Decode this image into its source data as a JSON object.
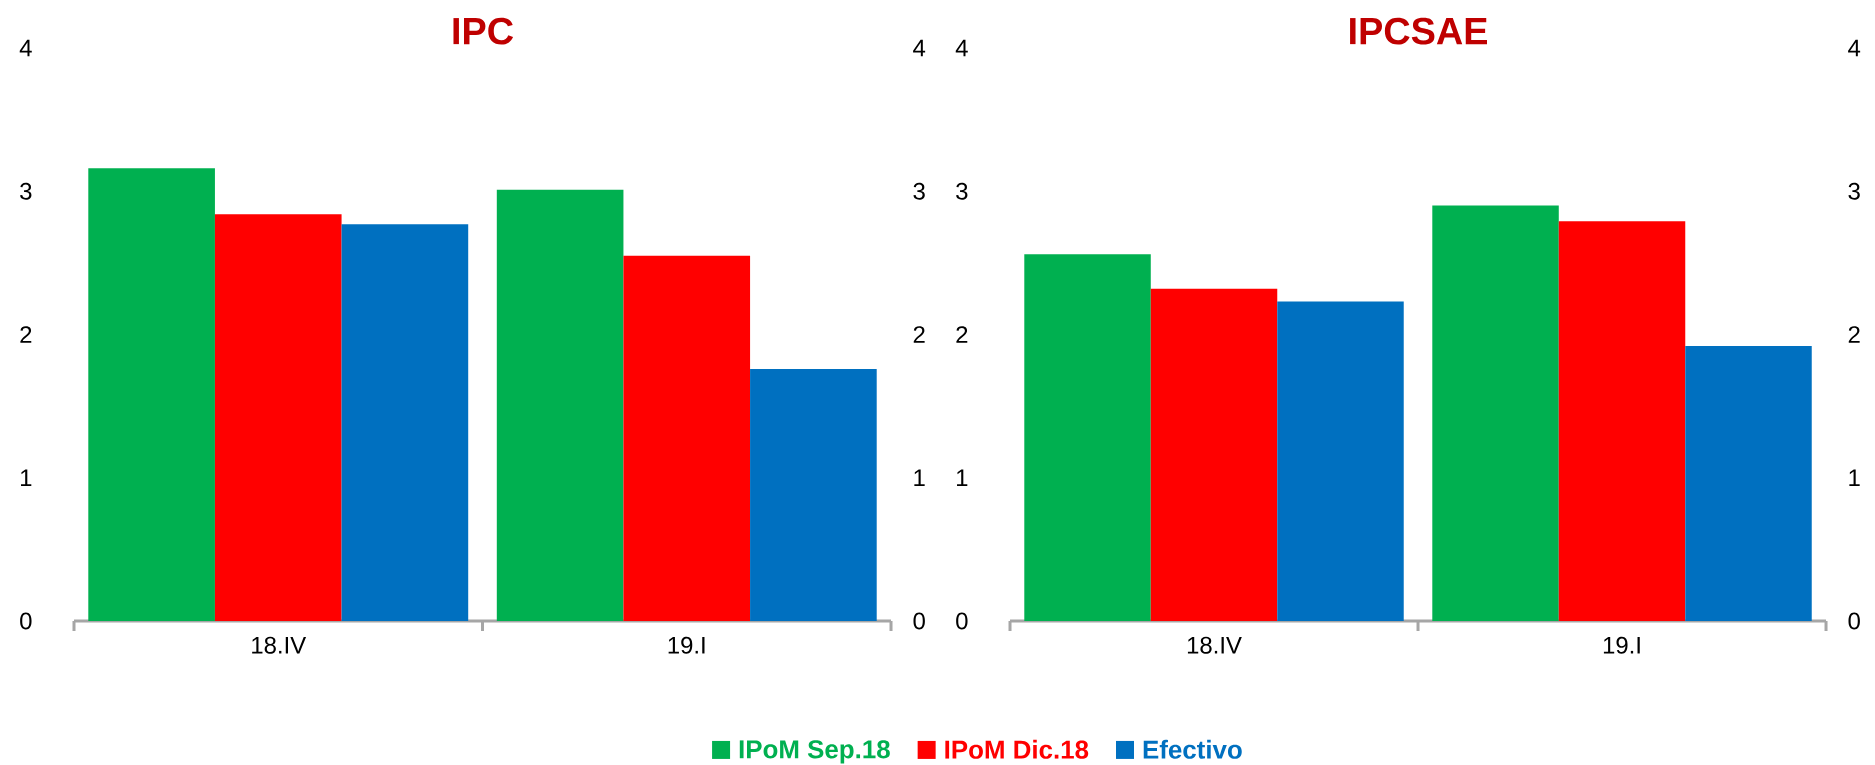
{
  "chart_data": [
    {
      "type": "bar",
      "title": "IPC",
      "categories": [
        "18.IV",
        "19.I"
      ],
      "ylim": [
        0,
        4
      ],
      "yticks": [
        0,
        1,
        2,
        3,
        4
      ],
      "y2lim": [
        0,
        4
      ],
      "y2ticks": [
        0,
        1,
        2,
        3,
        4
      ],
      "legend": "bottom",
      "grid": false,
      "series": [
        {
          "name": "IPoM Sep.18",
          "color": "#00b050",
          "values": [
            3.16,
            3.01
          ]
        },
        {
          "name": "IPoM Dic.18",
          "color": "#ff0000",
          "values": [
            2.84,
            2.55
          ]
        },
        {
          "name": "Efectivo",
          "color": "#0070c0",
          "values": [
            2.77,
            1.76
          ]
        }
      ]
    },
    {
      "type": "bar",
      "title": "IPCSAE",
      "categories": [
        "18.IV",
        "19.I"
      ],
      "ylim": [
        0,
        4
      ],
      "yticks": [
        0,
        1,
        2,
        3,
        4
      ],
      "y2lim": [
        0,
        4
      ],
      "y2ticks": [
        0,
        1,
        2,
        3,
        4
      ],
      "grid": false,
      "series": [
        {
          "color": "#00b050",
          "values": [
            2.56,
            2.9
          ]
        },
        {
          "color": "#ff0000",
          "values": [
            2.32,
            2.79
          ]
        },
        {
          "color": "#0070c0",
          "values": [
            2.23,
            1.92
          ]
        }
      ]
    }
  ]
}
